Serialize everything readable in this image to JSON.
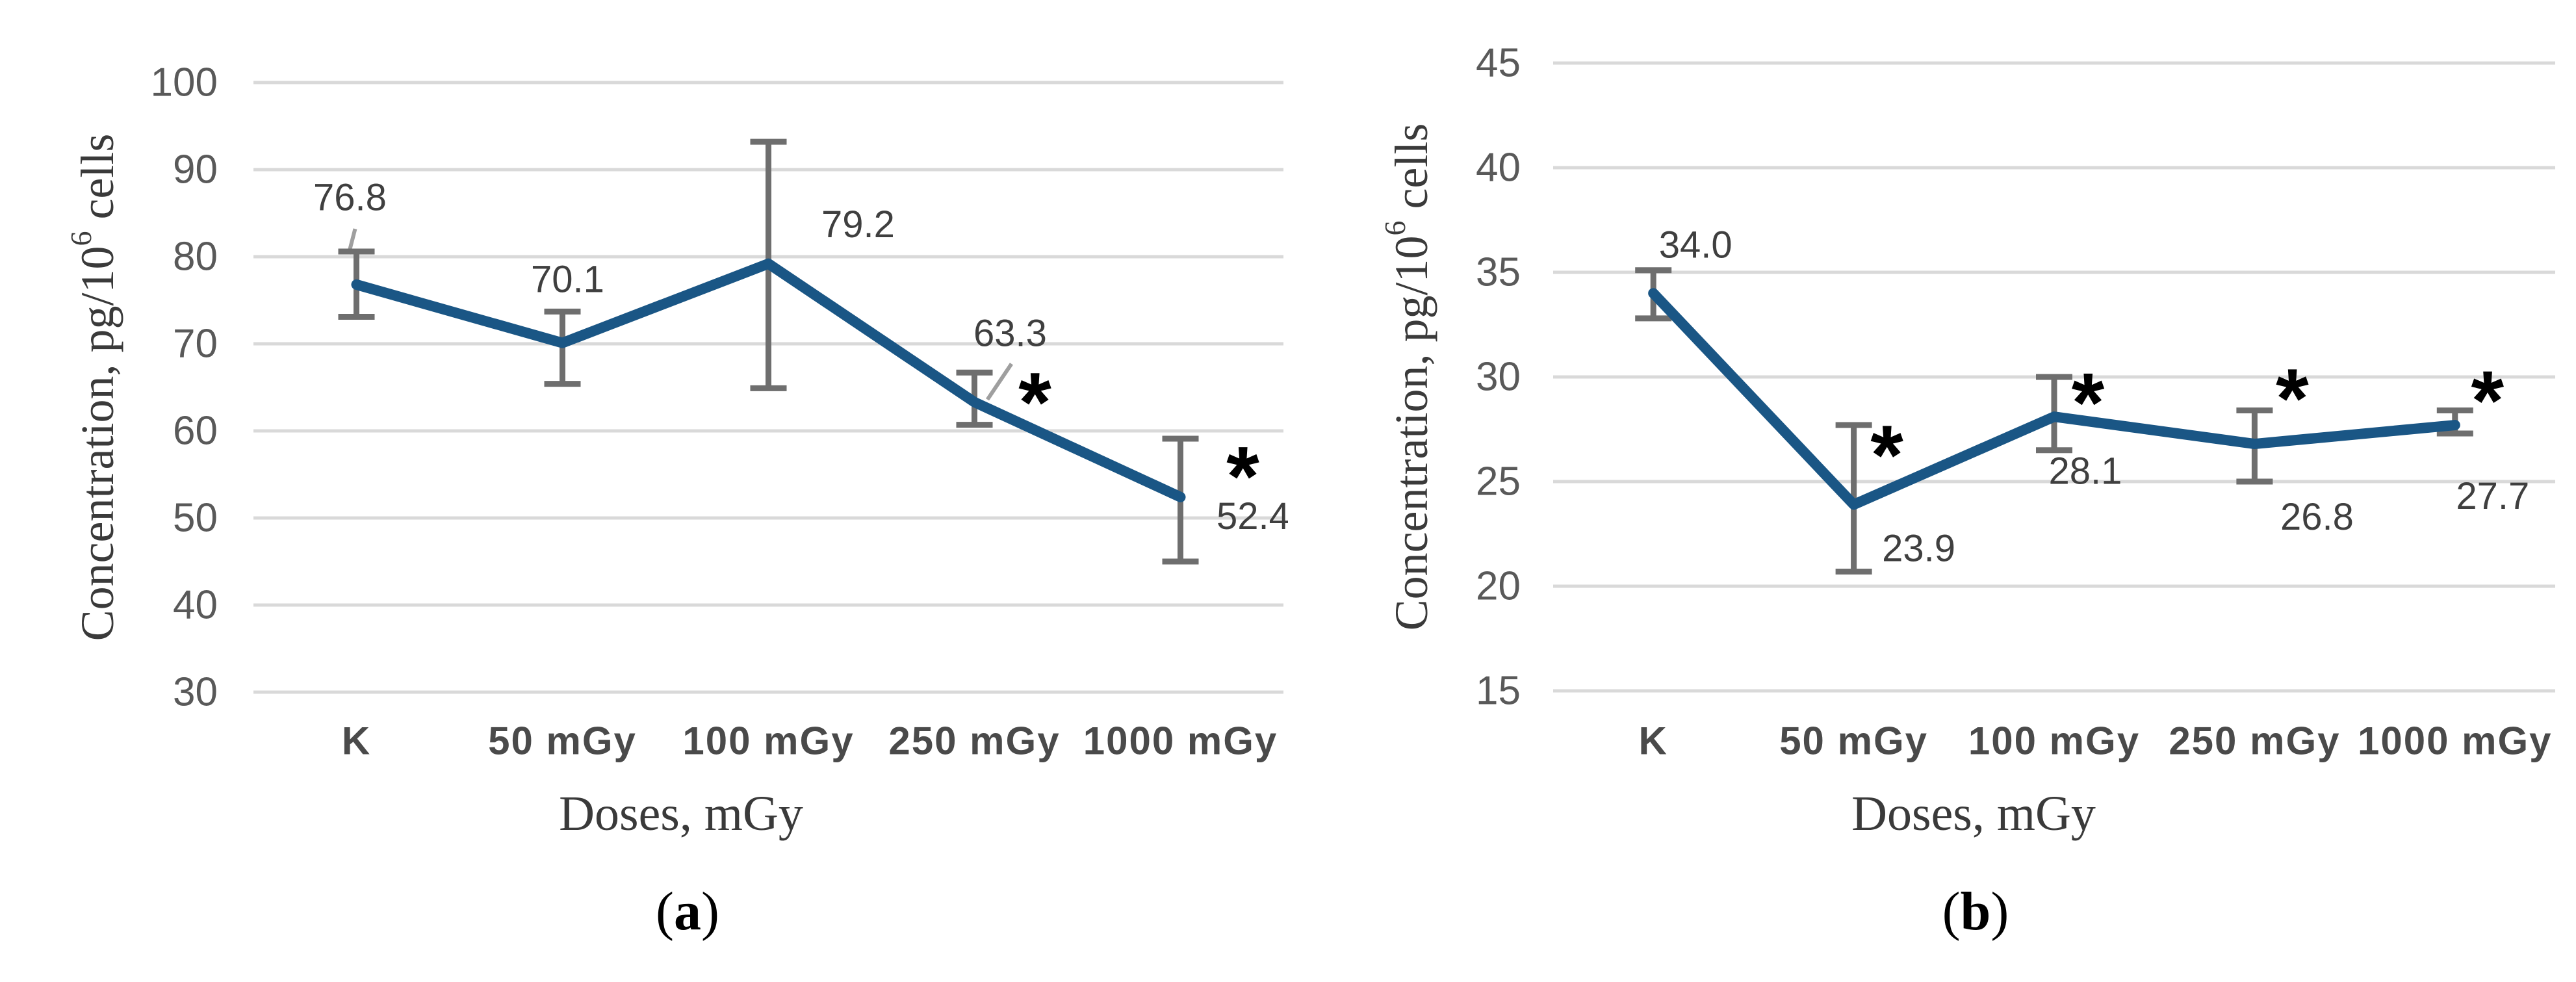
{
  "colors": {
    "background": "#ffffff",
    "line": "#1a5685",
    "error_bar": "#6e6e6e",
    "gridline": "#d9d9d9",
    "tick_label": "#595959",
    "category_label": "#4a4a4a",
    "data_label": "#3f3f3f",
    "axis_title": "#3a3a3a",
    "caption": "#000000",
    "significance": "#000000",
    "leader_line": "#9f9f9f"
  },
  "chart_data": [
    {
      "type": "line",
      "panel_caption": "(a)",
      "title": "",
      "ylabel": "Concentration, pg/10⁶ cells",
      "xlabel": "Doses, mGy",
      "categories": [
        "K",
        "50 mGy",
        "100 mGy",
        "250 mGy",
        "1000 mGy"
      ],
      "series": [
        {
          "values": [
            76.8,
            70.1,
            79.2,
            63.3,
            52.4
          ],
          "error_low": [
            73.1,
            65.4,
            64.9,
            60.7,
            45.0
          ],
          "error_high": [
            80.6,
            73.7,
            93.2,
            66.7,
            59.1
          ]
        }
      ],
      "data_labels": [
        "76.8",
        "70.1",
        "79.2",
        "63.3",
        "52.4"
      ],
      "significance_marks": [
        "",
        "",
        "",
        "*",
        "*"
      ],
      "ylim": [
        30,
        100
      ],
      "ytick_step": 10,
      "grid": true,
      "legend": "none"
    },
    {
      "type": "line",
      "panel_caption": "(b)",
      "title": "",
      "ylabel": "Concentration, pg/10⁶ cells",
      "xlabel": "Doses, mGy",
      "categories": [
        "K",
        "50 mGy",
        "100 mGy",
        "250 mGy",
        "1000 mGy"
      ],
      "series": [
        {
          "values": [
            34.0,
            23.9,
            28.1,
            26.8,
            27.7
          ],
          "error_low": [
            32.8,
            20.7,
            26.5,
            25.0,
            27.3
          ],
          "error_high": [
            35.1,
            27.7,
            30.0,
            28.4,
            28.4
          ]
        }
      ],
      "data_labels": [
        "34.0",
        "23.9",
        "28.1",
        "26.8",
        "27.7"
      ],
      "significance_marks": [
        "",
        "*",
        "*",
        "*",
        "*"
      ],
      "ylim": [
        15,
        45
      ],
      "ytick_step": 5,
      "grid": true,
      "legend": "none"
    }
  ]
}
